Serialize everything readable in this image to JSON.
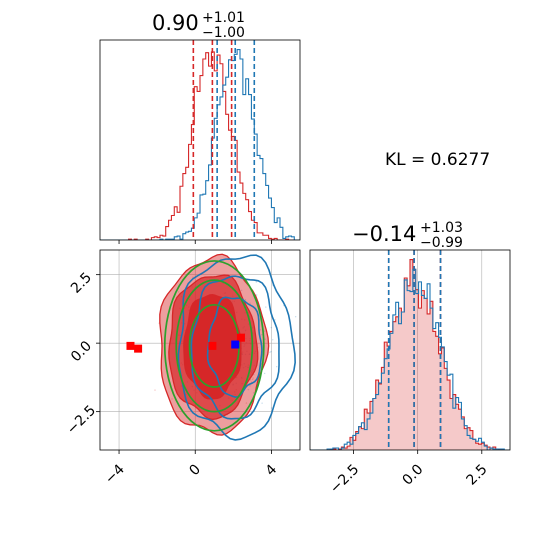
{
  "colors": {
    "blue": "#1f77b4",
    "red": "#d62728",
    "green": "#2ca02c",
    "grid": "#b0b0b0"
  },
  "chart_data": [
    {
      "type": "histogram",
      "title": {
        "value": "0.90",
        "plus": "+1.01",
        "minus": "−1.00"
      },
      "xlim": [
        -5,
        5.5
      ],
      "grid": false,
      "series": [
        {
          "name": "",
          "color": "#d62728",
          "mean": 0.9,
          "sd": 1.0,
          "quantiles": [
            -0.1,
            0.9,
            1.91
          ]
        },
        {
          "name": "",
          "color": "#1f77b4",
          "mean": 2.1,
          "sd": 1.0,
          "quantiles": [
            1.15,
            2.1,
            3.1
          ]
        }
      ],
      "x_ticks": [
        -4,
        0,
        4
      ]
    },
    {
      "type": "histogram",
      "title": {
        "value": "−0.14",
        "plus": "+1.03",
        "minus": "−0.99"
      },
      "xlim": [
        -4.2,
        3.6
      ],
      "grid": true,
      "series": [
        {
          "name": "",
          "color": "#d62728",
          "mean": -0.14,
          "sd": 1.0,
          "quantiles": [
            -1.13,
            -0.14,
            0.89
          ]
        },
        {
          "name": "",
          "color": "#1f77b4",
          "mean": -0.14,
          "sd": 1.0,
          "quantiles": [
            -1.13,
            -0.14,
            0.89
          ]
        }
      ],
      "x_ticks": [
        -2.5,
        0.0,
        2.5
      ],
      "x_tick_labels": [
        "−2.5",
        "0.0",
        "2.5"
      ]
    },
    {
      "type": "contour",
      "xlim": [
        -5,
        5.5
      ],
      "ylim": [
        -3.9,
        3.4
      ],
      "grid": true,
      "x_ticks": [
        -4,
        0,
        4
      ],
      "x_tick_labels": [
        "−4",
        "0",
        "4"
      ],
      "y_ticks": [
        -2.5,
        0.0,
        2.5
      ],
      "y_tick_labels": [
        "−2.5",
        "0.0",
        "2.5"
      ],
      "red_points": [
        [
          -3.4,
          -0.1
        ],
        [
          -3.0,
          -0.2
        ],
        [
          0.9,
          -0.1
        ],
        [
          2.4,
          0.2
        ]
      ],
      "blue_points": [
        [
          2.1,
          -0.05
        ]
      ],
      "green_ellipses": {
        "center": [
          1.0,
          -0.1
        ],
        "rx": [
          1.3,
          2.0,
          2.6
        ],
        "ry": [
          1.5,
          2.4,
          3.1
        ]
      }
    }
  ],
  "kl": {
    "label": "KL = 0.6277"
  }
}
